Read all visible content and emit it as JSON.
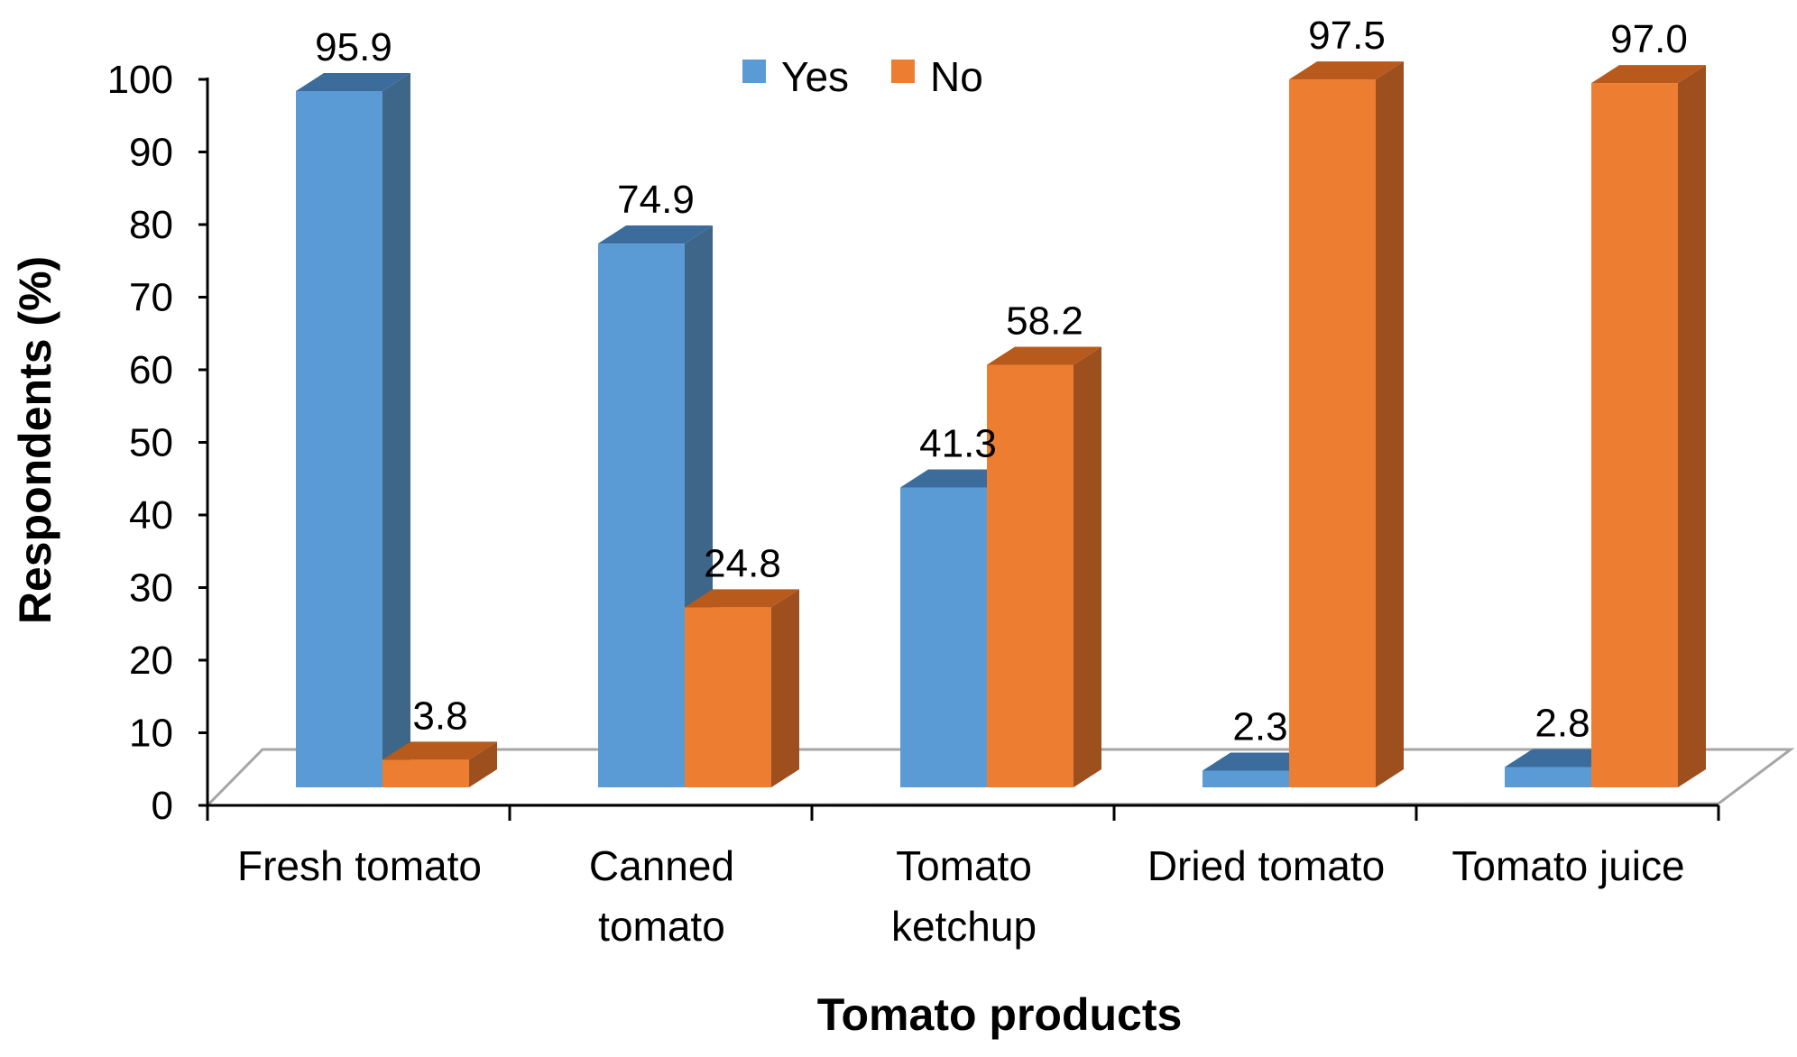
{
  "chart_data": {
    "type": "bar",
    "categories": [
      [
        "Fresh tomato"
      ],
      [
        "Canned",
        "tomato"
      ],
      [
        "Tomato",
        "ketchup"
      ],
      [
        "Dried tomato"
      ],
      [
        "Tomato juice"
      ]
    ],
    "series": [
      {
        "name": "Yes",
        "values": [
          95.9,
          74.9,
          41.3,
          2.3,
          2.8
        ],
        "labels": [
          "95.9",
          "74.9",
          "41.3",
          "2.3",
          "2.8"
        ],
        "color": "#5B9BD5",
        "side_color": "#3E6689",
        "top_color": "#3C6C9B"
      },
      {
        "name": "No",
        "values": [
          3.8,
          24.8,
          58.2,
          97.5,
          97.0
        ],
        "labels": [
          "3.8",
          "24.8",
          "58.2",
          "97.5",
          "97.0"
        ],
        "color": "#ED7D31",
        "side_color": "#9E4F1E",
        "top_color": "#B85A1C"
      }
    ],
    "xlabel": "Tomato products",
    "ylabel": "Respondents (%)",
    "ylim": [
      0,
      100
    ],
    "yticks": [
      0,
      10,
      20,
      30,
      40,
      50,
      60,
      70,
      80,
      90,
      100
    ],
    "legend_position": "top-center",
    "grid": false,
    "style": "3d-column"
  }
}
